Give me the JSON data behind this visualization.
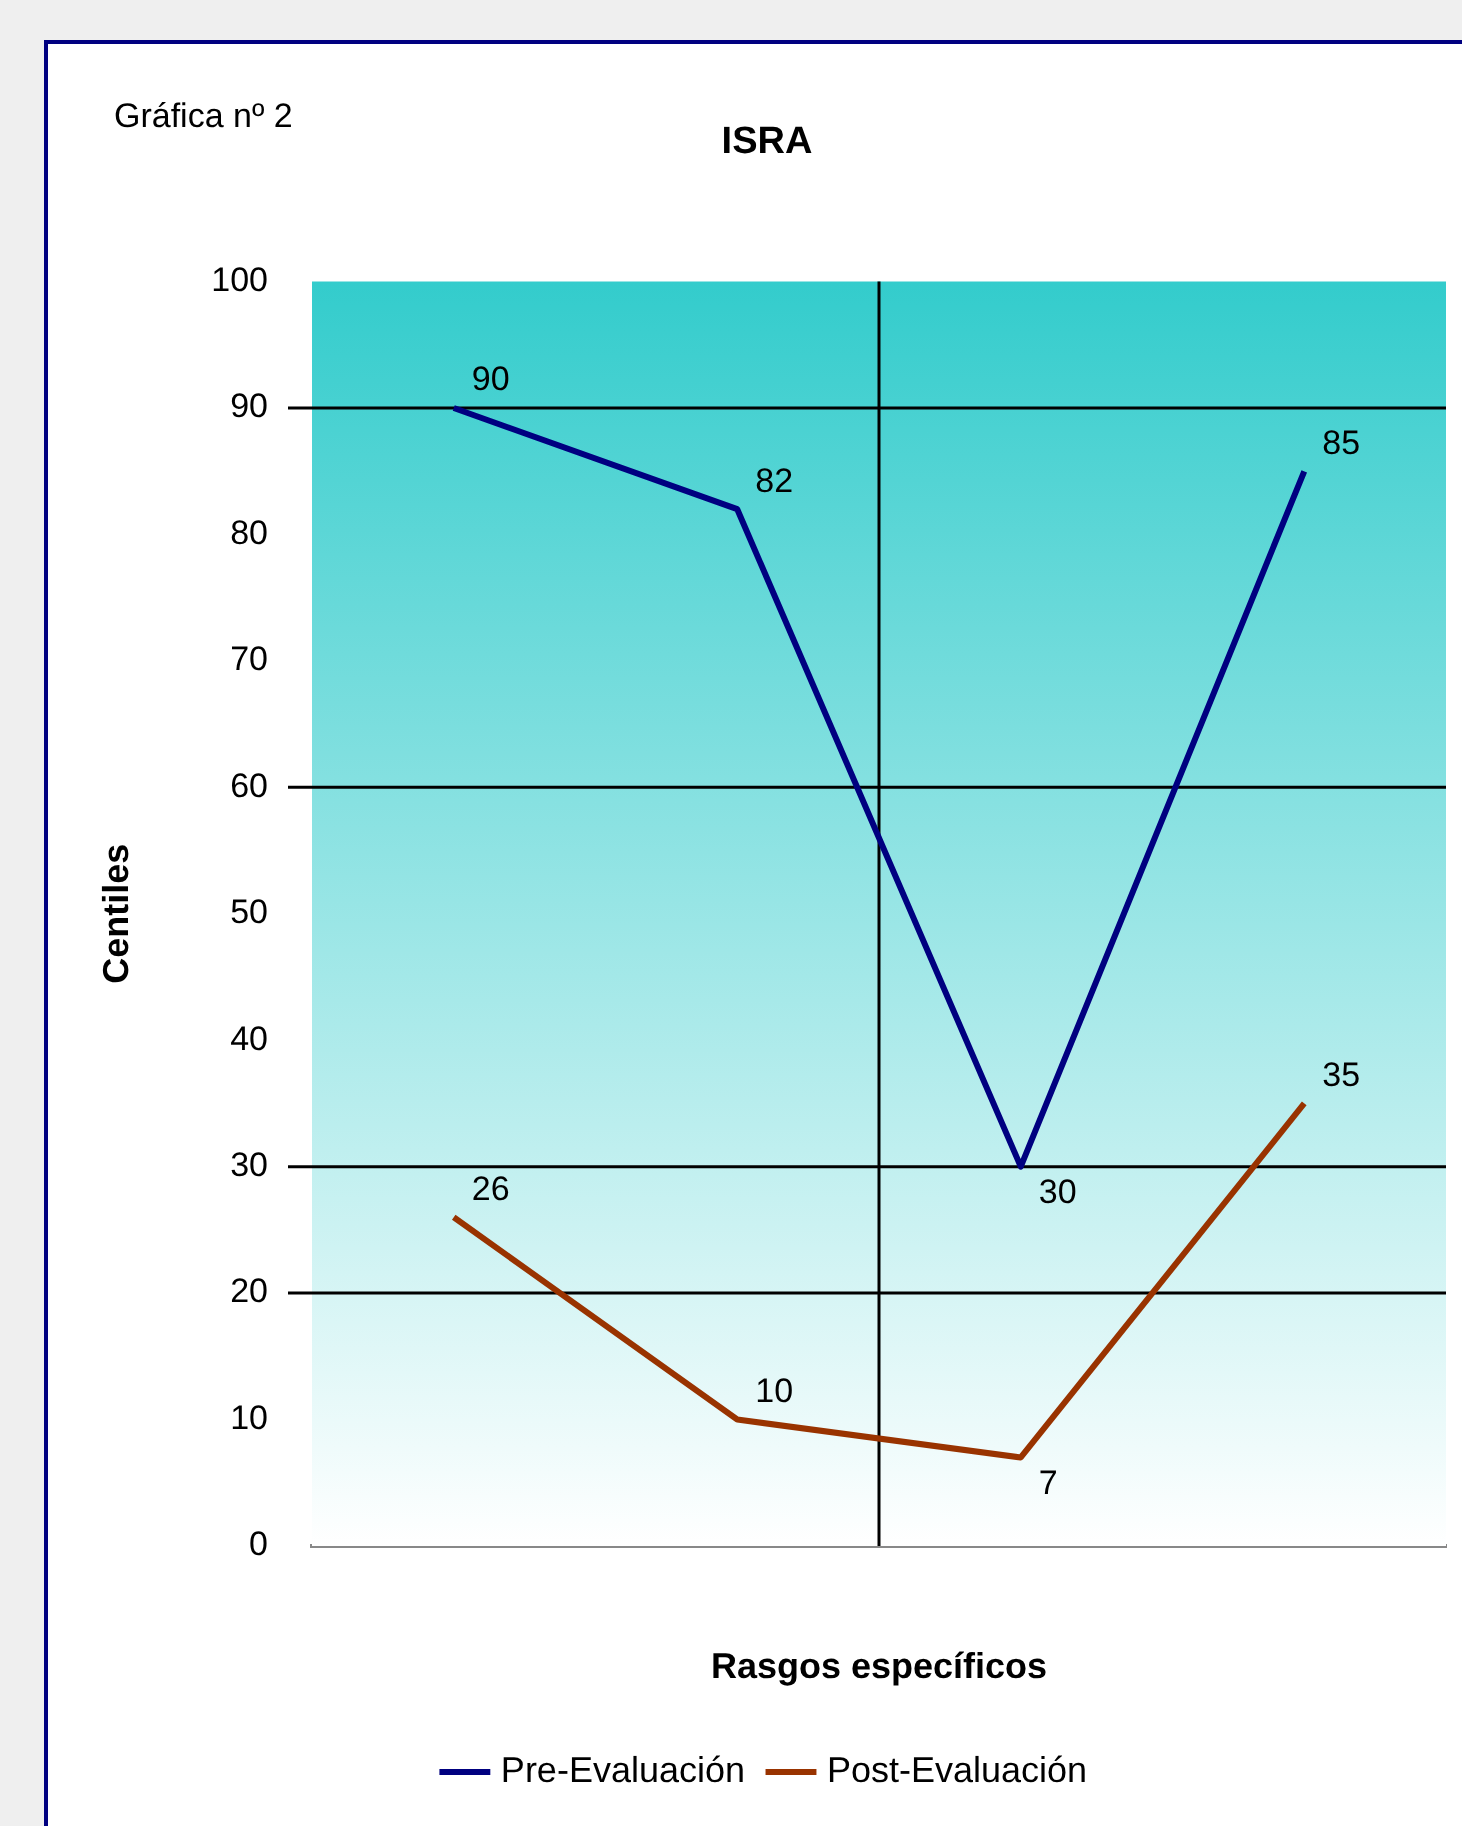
{
  "chart_data": {
    "type": "line",
    "title": "ISRA",
    "xlabel": "Rasgos específicos",
    "ylabel": "Centiles",
    "annotations": [
      "Gráfica nº 2"
    ],
    "categories": [
      null,
      null,
      null,
      null
    ],
    "series": [
      {
        "name": "Pre-Evaluación",
        "color": "#000080",
        "values": [
          90,
          82,
          30,
          85
        ]
      },
      {
        "name": "Post-Evaluación",
        "color": "#993300",
        "values": [
          26,
          10,
          7,
          35
        ]
      }
    ],
    "ylim": [
      0,
      100
    ],
    "yticks": [
      0,
      10,
      20,
      30,
      40,
      50,
      60,
      70,
      80,
      90,
      100
    ],
    "ref_lines": [
      {
        "axis": "y",
        "value": 90,
        "color": "#000000"
      },
      {
        "axis": "y",
        "value": 60,
        "color": "#000000"
      },
      {
        "axis": "y",
        "value": 30,
        "color": "#000000"
      },
      {
        "axis": "y",
        "value": 20,
        "color": "#000000"
      }
    ],
    "data_labels": true,
    "legend": "bottom",
    "marker": "none",
    "line_style": "solid",
    "grid": false
  }
}
